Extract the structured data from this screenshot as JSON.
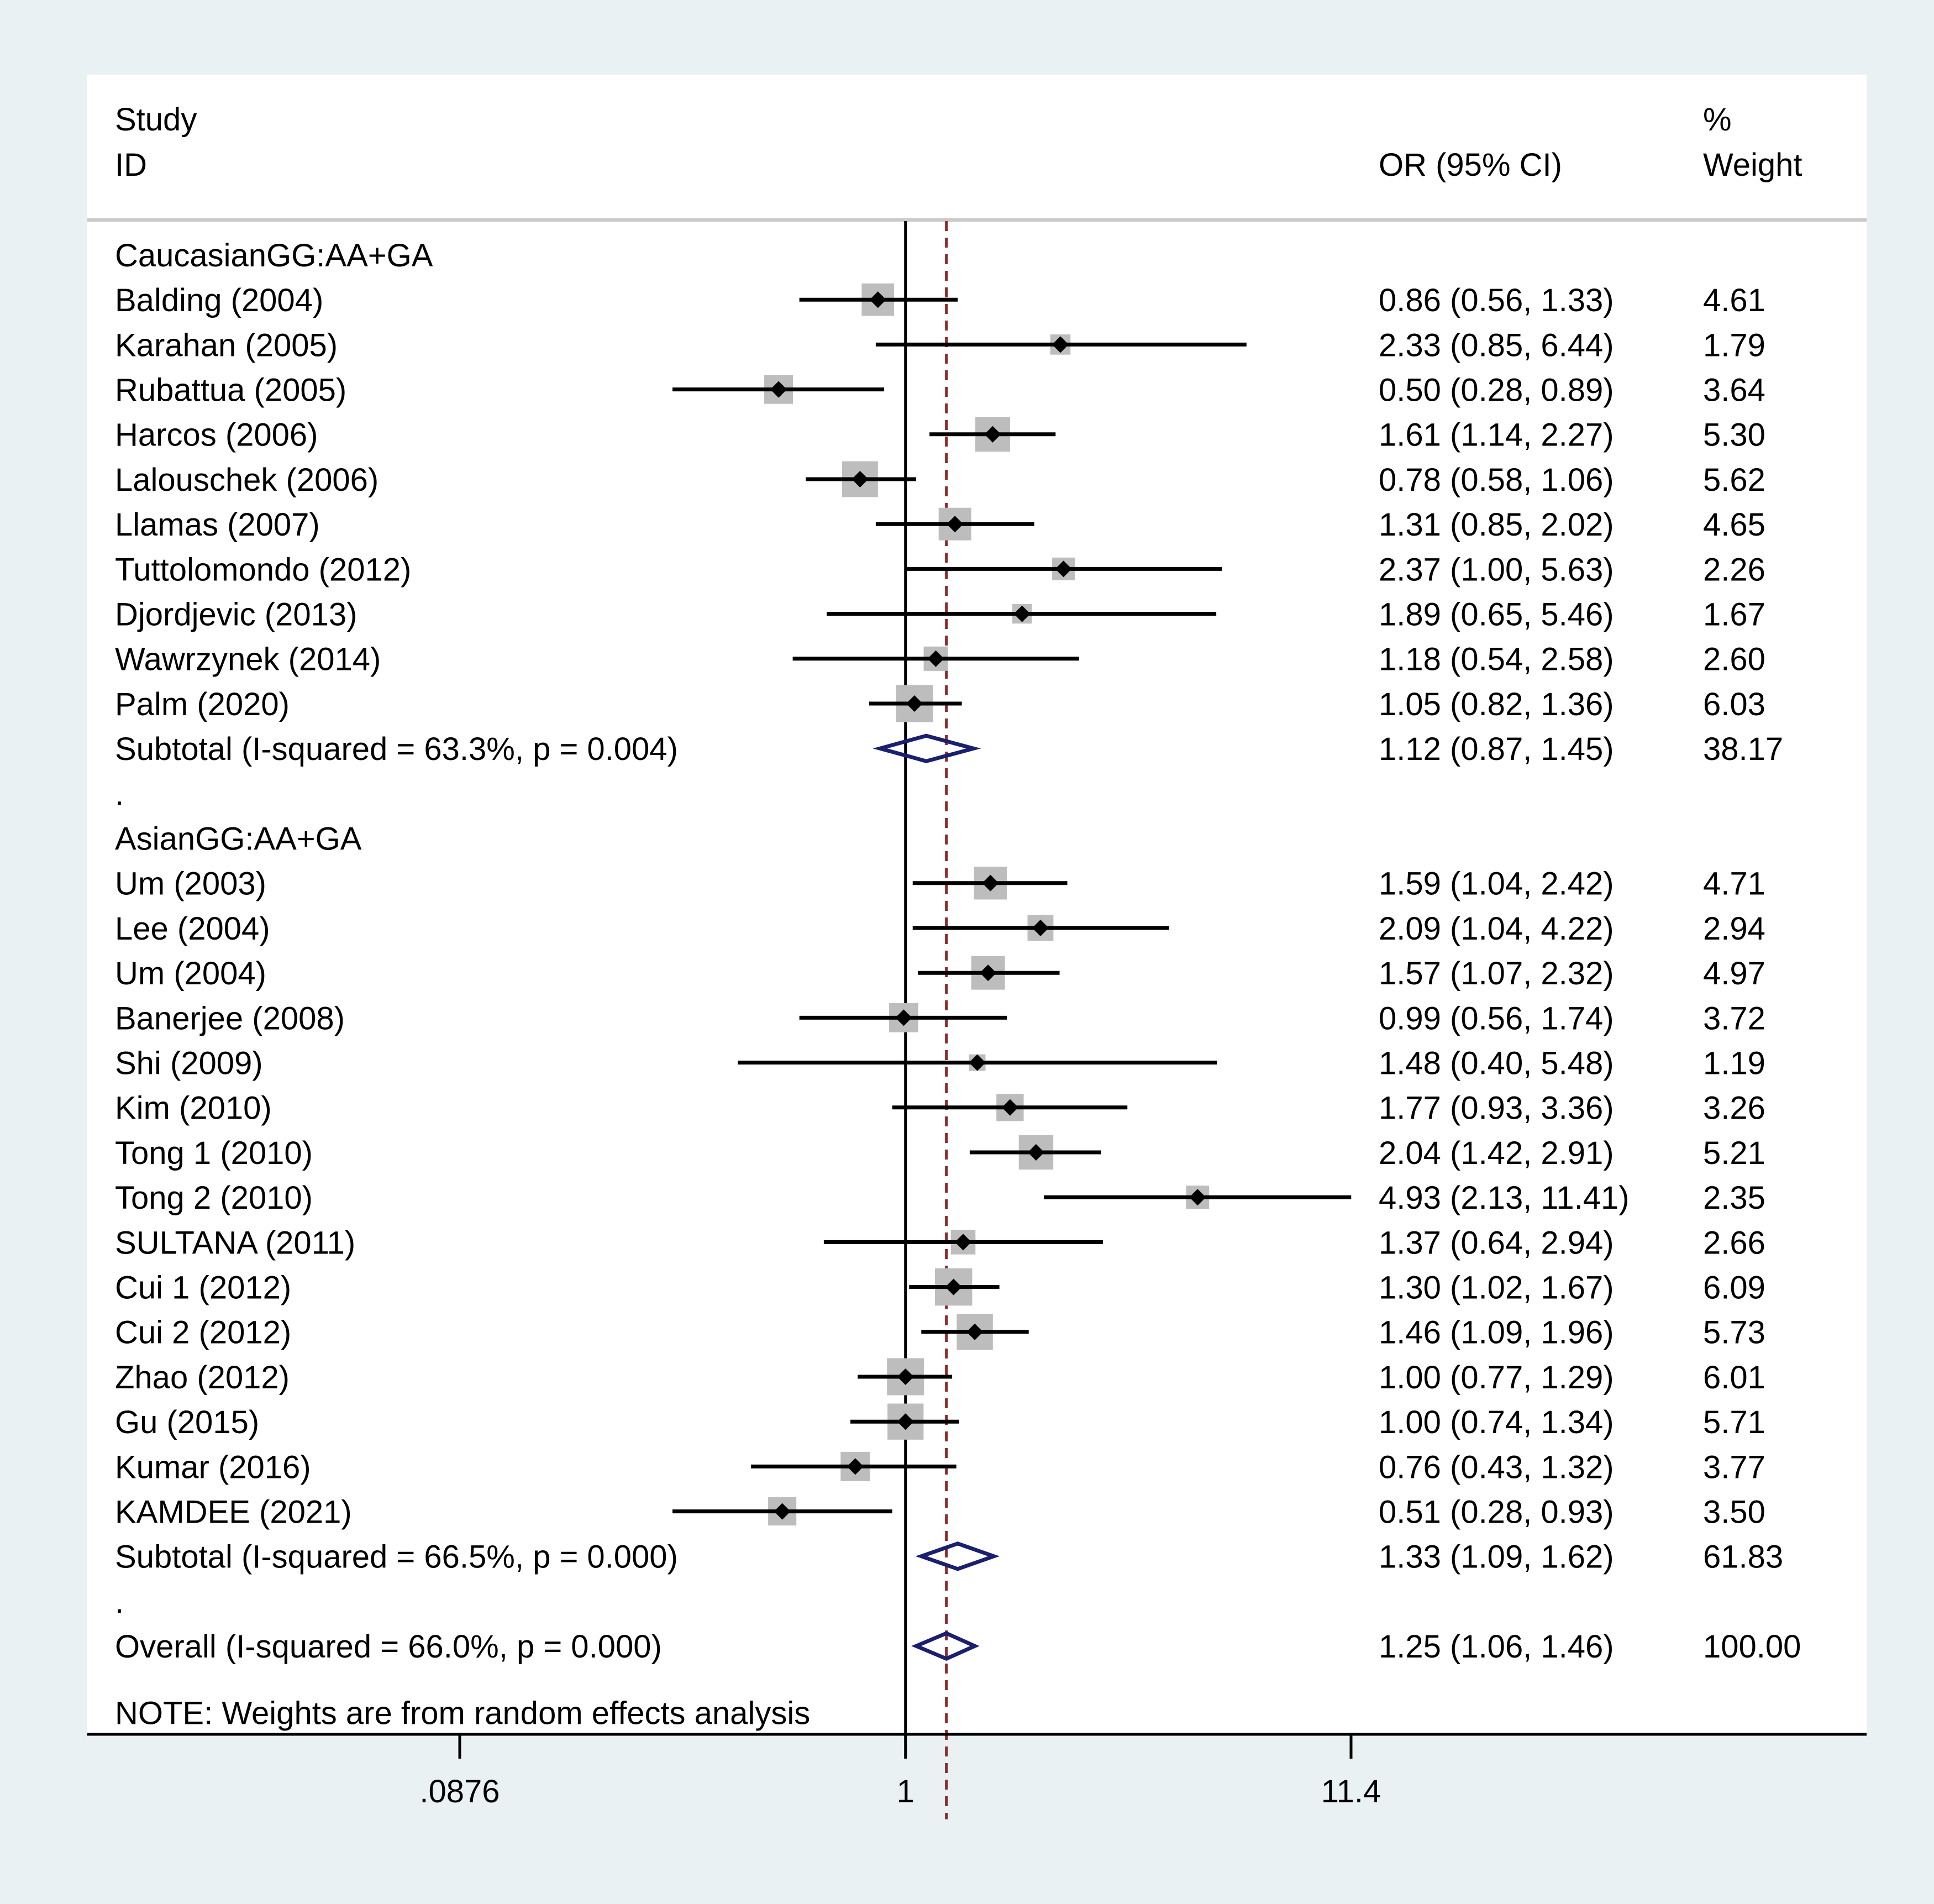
{
  "chart_data": {
    "type": "forest",
    "header": {
      "study_label_1": "Study",
      "study_label_2": "ID",
      "or_label": "OR (95% CI)",
      "weight_label_1": "%",
      "weight_label_2": "Weight"
    },
    "x_scale": "log",
    "xlim": [
      0.0876,
      11.4
    ],
    "ticks": [
      {
        "value": 0.0876,
        "label": ".0876"
      },
      {
        "value": 1,
        "label": "1"
      },
      {
        "value": 11.4,
        "label": "11.4"
      }
    ],
    "null_line": 1,
    "overall_line": 1.25,
    "groups": [
      {
        "name": "CaucasianGG:AA+GA",
        "studies": [
          {
            "id": "Balding (2004)",
            "or": 0.86,
            "lo": 0.56,
            "hi": 1.33,
            "weight": 4.61,
            "ci_text": "0.86 (0.56, 1.33)",
            "weight_text": "4.61"
          },
          {
            "id": "Karahan (2005)",
            "or": 2.33,
            "lo": 0.85,
            "hi": 6.44,
            "weight": 1.79,
            "ci_text": "2.33 (0.85, 6.44)",
            "weight_text": "1.79"
          },
          {
            "id": "Rubattua (2005)",
            "or": 0.5,
            "lo": 0.28,
            "hi": 0.89,
            "weight": 3.64,
            "ci_text": "0.50 (0.28, 0.89)",
            "weight_text": "3.64"
          },
          {
            "id": "Harcos (2006)",
            "or": 1.61,
            "lo": 1.14,
            "hi": 2.27,
            "weight": 5.3,
            "ci_text": "1.61 (1.14, 2.27)",
            "weight_text": "5.30"
          },
          {
            "id": "Lalouschek (2006)",
            "or": 0.78,
            "lo": 0.58,
            "hi": 1.06,
            "weight": 5.62,
            "ci_text": "0.78 (0.58, 1.06)",
            "weight_text": "5.62"
          },
          {
            "id": "Llamas (2007)",
            "or": 1.31,
            "lo": 0.85,
            "hi": 2.02,
            "weight": 4.65,
            "ci_text": "1.31 (0.85, 2.02)",
            "weight_text": "4.65"
          },
          {
            "id": "Tuttolomondo (2012)",
            "or": 2.37,
            "lo": 1.0,
            "hi": 5.63,
            "weight": 2.26,
            "ci_text": "2.37 (1.00, 5.63)",
            "weight_text": "2.26"
          },
          {
            "id": "Djordjevic (2013)",
            "or": 1.89,
            "lo": 0.65,
            "hi": 5.46,
            "weight": 1.67,
            "ci_text": "1.89 (0.65, 5.46)",
            "weight_text": "1.67"
          },
          {
            "id": "Wawrzynek (2014)",
            "or": 1.18,
            "lo": 0.54,
            "hi": 2.58,
            "weight": 2.6,
            "ci_text": "1.18 (0.54, 2.58)",
            "weight_text": "2.60"
          },
          {
            "id": "Palm (2020)",
            "or": 1.05,
            "lo": 0.82,
            "hi": 1.36,
            "weight": 6.03,
            "ci_text": "1.05 (0.82, 1.36)",
            "weight_text": "6.03"
          }
        ],
        "subtotal": {
          "label": "Subtotal  (I-squared = 63.3%, p = 0.004)",
          "or": 1.12,
          "lo": 0.87,
          "hi": 1.45,
          "ci_text": "1.12 (0.87, 1.45)",
          "weight_text": "38.17"
        },
        "separator": "."
      },
      {
        "name": "AsianGG:AA+GA",
        "studies": [
          {
            "id": "Um (2003)",
            "or": 1.59,
            "lo": 1.04,
            "hi": 2.42,
            "weight": 4.71,
            "ci_text": "1.59 (1.04, 2.42)",
            "weight_text": "4.71"
          },
          {
            "id": "Lee (2004)",
            "or": 2.09,
            "lo": 1.04,
            "hi": 4.22,
            "weight": 2.94,
            "ci_text": "2.09 (1.04, 4.22)",
            "weight_text": "2.94"
          },
          {
            "id": "Um (2004)",
            "or": 1.57,
            "lo": 1.07,
            "hi": 2.32,
            "weight": 4.97,
            "ci_text": "1.57 (1.07, 2.32)",
            "weight_text": "4.97"
          },
          {
            "id": "Banerjee (2008)",
            "or": 0.99,
            "lo": 0.56,
            "hi": 1.74,
            "weight": 3.72,
            "ci_text": "0.99 (0.56, 1.74)",
            "weight_text": "3.72"
          },
          {
            "id": "Shi (2009)",
            "or": 1.48,
            "lo": 0.4,
            "hi": 5.48,
            "weight": 1.19,
            "ci_text": "1.48 (0.40, 5.48)",
            "weight_text": "1.19"
          },
          {
            "id": "Kim (2010)",
            "or": 1.77,
            "lo": 0.93,
            "hi": 3.36,
            "weight": 3.26,
            "ci_text": "1.77 (0.93, 3.36)",
            "weight_text": "3.26"
          },
          {
            "id": "Tong 1 (2010)",
            "or": 2.04,
            "lo": 1.42,
            "hi": 2.91,
            "weight": 5.21,
            "ci_text": "2.04 (1.42, 2.91)",
            "weight_text": "5.21"
          },
          {
            "id": "Tong 2 (2010)",
            "or": 4.93,
            "lo": 2.13,
            "hi": 11.41,
            "weight": 2.35,
            "ci_text": "4.93 (2.13, 11.41)",
            "weight_text": "2.35"
          },
          {
            "id": "SULTANA (2011)",
            "or": 1.37,
            "lo": 0.64,
            "hi": 2.94,
            "weight": 2.66,
            "ci_text": "1.37 (0.64, 2.94)",
            "weight_text": "2.66"
          },
          {
            "id": "Cui 1 (2012)",
            "or": 1.3,
            "lo": 1.02,
            "hi": 1.67,
            "weight": 6.09,
            "ci_text": "1.30 (1.02, 1.67)",
            "weight_text": "6.09"
          },
          {
            "id": "Cui 2 (2012)",
            "or": 1.46,
            "lo": 1.09,
            "hi": 1.96,
            "weight": 5.73,
            "ci_text": "1.46 (1.09, 1.96)",
            "weight_text": "5.73"
          },
          {
            "id": "Zhao (2012)",
            "or": 1.0,
            "lo": 0.77,
            "hi": 1.29,
            "weight": 6.01,
            "ci_text": "1.00 (0.77, 1.29)",
            "weight_text": "6.01"
          },
          {
            "id": "Gu (2015)",
            "or": 1.0,
            "lo": 0.74,
            "hi": 1.34,
            "weight": 5.71,
            "ci_text": "1.00 (0.74, 1.34)",
            "weight_text": "5.71"
          },
          {
            "id": "Kumar (2016)",
            "or": 0.76,
            "lo": 0.43,
            "hi": 1.32,
            "weight": 3.77,
            "ci_text": "0.76 (0.43, 1.32)",
            "weight_text": "3.77"
          },
          {
            "id": "KAMDEE (2021)",
            "or": 0.51,
            "lo": 0.28,
            "hi": 0.93,
            "weight": 3.5,
            "ci_text": "0.51 (0.28, 0.93)",
            "weight_text": "3.50"
          }
        ],
        "subtotal": {
          "label": "Subtotal  (I-squared = 66.5%, p = 0.000)",
          "or": 1.33,
          "lo": 1.09,
          "hi": 1.62,
          "ci_text": "1.33 (1.09, 1.62)",
          "weight_text": "61.83"
        },
        "separator": "."
      }
    ],
    "overall": {
      "label": "Overall  (I-squared = 66.0%, p = 0.000)",
      "or": 1.25,
      "lo": 1.06,
      "hi": 1.46,
      "ci_text": "1.25 (1.06, 1.46)",
      "weight_text": "100.00"
    },
    "note": "NOTE: Weights are from random effects analysis",
    "colors": {
      "page_bg": "#eaf1f3",
      "panel_bg": "#ffffff",
      "weight_box": "#bdbdbd",
      "point": "#000000",
      "ci_line": "#000000",
      "diamond": "#1a1f6e",
      "overall_line": "#8b2a2a",
      "header_rule": "#c9c9c9"
    }
  }
}
